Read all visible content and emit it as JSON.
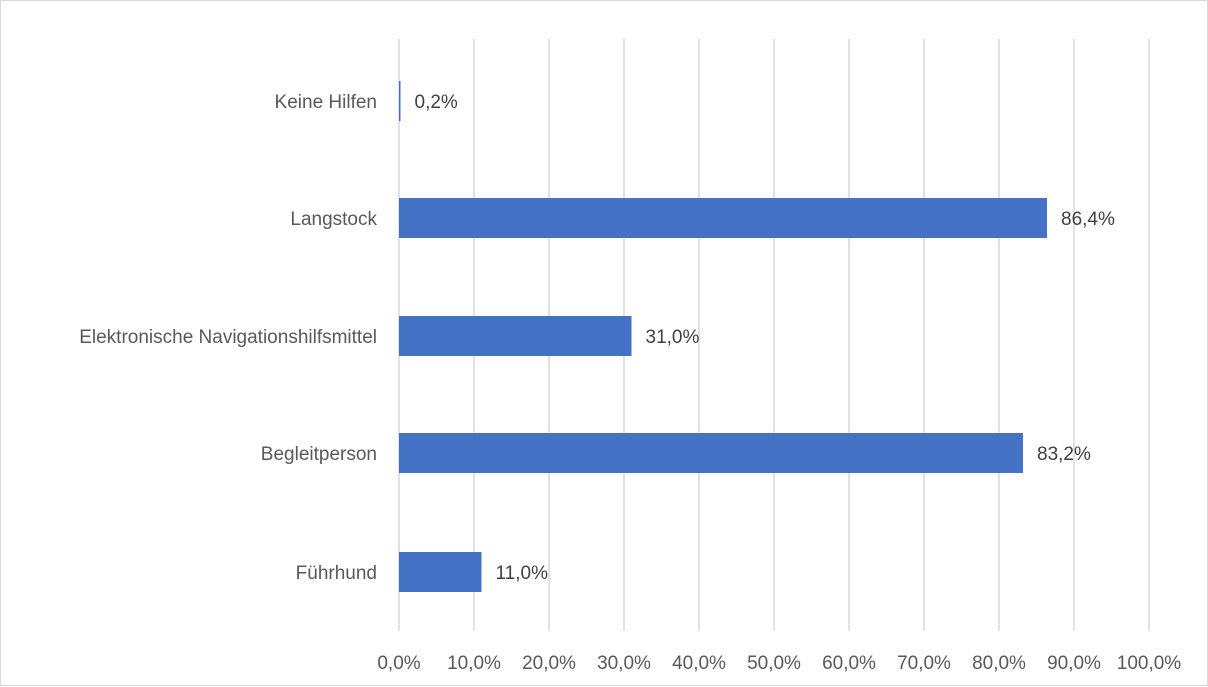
{
  "chart_data": {
    "type": "bar",
    "orientation": "horizontal",
    "categories": [
      "Keine Hilfen",
      "Langstock",
      "Elektronische Navigationshilfsmittel",
      "Begleitperson",
      "Führhund"
    ],
    "values": [
      0.2,
      86.4,
      31.0,
      83.2,
      11.0
    ],
    "value_labels": [
      "0,2%",
      "86,4%",
      "31,0%",
      "83,2%",
      "11,0%"
    ],
    "xlim": [
      0,
      100
    ],
    "x_ticks": [
      0,
      10,
      20,
      30,
      40,
      50,
      60,
      70,
      80,
      90,
      100
    ],
    "x_tick_labels": [
      "0,0%",
      "10,0%",
      "20,0%",
      "30,0%",
      "40,0%",
      "50,0%",
      "60,0%",
      "70,0%",
      "80,0%",
      "90,0%",
      "100,0%"
    ],
    "grid": "vertical",
    "legend": "none",
    "colors": {
      "bar": "#4472c4",
      "grid": "#d9d9d9",
      "text": "#595959"
    }
  }
}
